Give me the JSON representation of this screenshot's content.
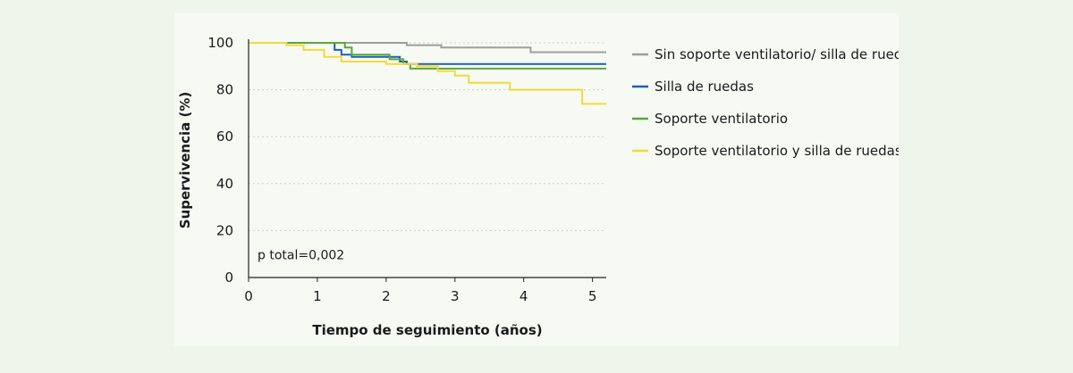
{
  "chart_data": {
    "type": "line",
    "step": true,
    "xlabel": "Tiempo de seguimiento (años)",
    "ylabel": "Supervivencia (%)",
    "xlim": [
      0,
      5.2
    ],
    "ylim": [
      0,
      100
    ],
    "x_ticks": [
      0,
      1,
      2,
      3,
      4,
      5
    ],
    "y_ticks": [
      0,
      20,
      40,
      60,
      80,
      100
    ],
    "grid": "horizontal dotted",
    "legend_position": "right",
    "annotation": "p total=0,002",
    "series": [
      {
        "name": "Sin soporte ventilatorio/ silla de ruedas",
        "color": "#9e9e9e",
        "points": [
          [
            0,
            100
          ],
          [
            2.3,
            100
          ],
          [
            2.3,
            99
          ],
          [
            2.8,
            99
          ],
          [
            2.8,
            98
          ],
          [
            4.1,
            98
          ],
          [
            4.1,
            96
          ],
          [
            5.2,
            96
          ]
        ]
      },
      {
        "name": "Silla de ruedas",
        "color": "#1f5fb3",
        "points": [
          [
            0,
            100
          ],
          [
            1.25,
            100
          ],
          [
            1.25,
            97
          ],
          [
            1.35,
            97
          ],
          [
            1.35,
            95
          ],
          [
            1.5,
            95
          ],
          [
            1.5,
            94
          ],
          [
            2.2,
            94
          ],
          [
            2.2,
            92
          ],
          [
            2.3,
            92
          ],
          [
            2.3,
            91
          ],
          [
            5.2,
            91
          ]
        ]
      },
      {
        "name": "Soporte ventilatorio",
        "color": "#58a83a",
        "points": [
          [
            0,
            100
          ],
          [
            0.6,
            100
          ],
          [
            1.4,
            100
          ],
          [
            1.4,
            98
          ],
          [
            1.5,
            98
          ],
          [
            1.5,
            95
          ],
          [
            2.05,
            95
          ],
          [
            2.05,
            93
          ],
          [
            2.25,
            93
          ],
          [
            2.25,
            91
          ],
          [
            2.35,
            91
          ],
          [
            2.35,
            89
          ],
          [
            5.2,
            89
          ]
        ]
      },
      {
        "name": "Soporte ventilatorio y silla de ruedas",
        "color": "#f3d93a",
        "points": [
          [
            0,
            100
          ],
          [
            0.55,
            100
          ],
          [
            0.55,
            99
          ],
          [
            0.8,
            99
          ],
          [
            0.8,
            97
          ],
          [
            1.1,
            97
          ],
          [
            1.1,
            94
          ],
          [
            1.35,
            94
          ],
          [
            1.35,
            92
          ],
          [
            2.0,
            92
          ],
          [
            2.0,
            91
          ],
          [
            2.45,
            91
          ],
          [
            2.45,
            90
          ],
          [
            2.75,
            90
          ],
          [
            2.75,
            88
          ],
          [
            3.0,
            88
          ],
          [
            3.0,
            86
          ],
          [
            3.2,
            86
          ],
          [
            3.2,
            83
          ],
          [
            3.8,
            83
          ],
          [
            3.8,
            80
          ],
          [
            4.85,
            80
          ],
          [
            4.85,
            74
          ],
          [
            5.2,
            74
          ]
        ]
      }
    ]
  }
}
